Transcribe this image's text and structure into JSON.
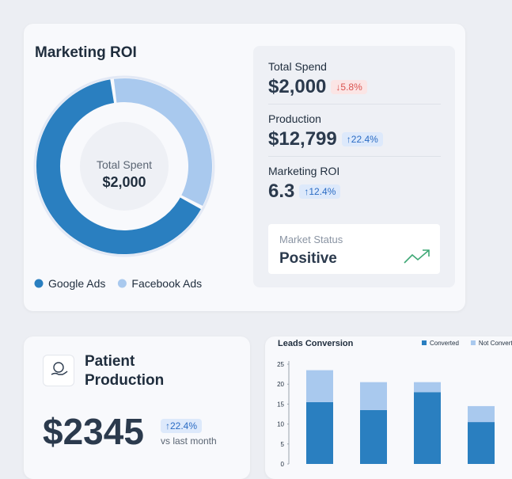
{
  "roi_card": {
    "title": "Marketing ROI",
    "donut": {
      "type": "pie",
      "center_label": "Total Spent",
      "center_value": "$2,000",
      "categories": [
        "Google Ads",
        "Facebook Ads"
      ],
      "values": [
        65,
        35
      ],
      "colors": [
        "#2a7fc0",
        "#a9c9ee"
      ]
    },
    "stats": [
      {
        "label": "Total Spend",
        "value": "$2,000",
        "change": "↓5.8%",
        "trend": "down"
      },
      {
        "label": "Production",
        "value": "$12,799",
        "change": "↑22.4%",
        "trend": "up"
      },
      {
        "label": "Marketing ROI",
        "value": "6.3",
        "change": "↑12.4%",
        "trend": "up"
      }
    ],
    "status": {
      "label": "Market Status",
      "value": "Positive"
    }
  },
  "patient_card": {
    "title": "Patient Production",
    "value": "$2345",
    "change": "↑22.4%",
    "note": "vs last month"
  },
  "chart_data": {
    "type": "bar",
    "stacked": true,
    "title": "Leads Conversion",
    "categories": [
      null,
      null,
      null,
      null
    ],
    "series": [
      {
        "name": "Converted",
        "color": "#2a7fc0",
        "values": [
          15.5,
          13.5,
          18,
          10.5
        ]
      },
      {
        "name": "Not Converted",
        "color": "#a9c9ee",
        "values": [
          8,
          7,
          2.5,
          4
        ]
      }
    ],
    "ylim": [
      0,
      25
    ],
    "yticks": [
      0,
      5,
      10,
      15,
      20,
      25
    ],
    "grid": false
  }
}
